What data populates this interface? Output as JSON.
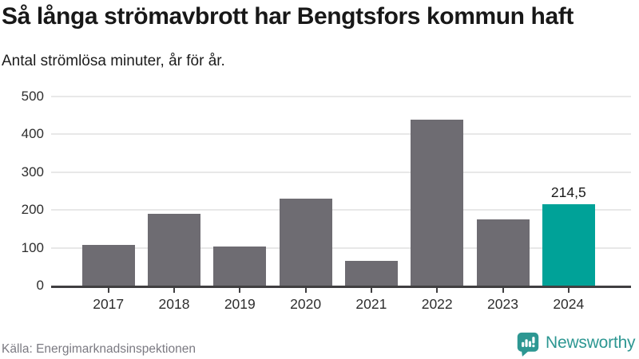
{
  "chart_data": {
    "type": "bar",
    "title": "Så långa strömavbrott har Bengtsfors kommun haft",
    "subtitle": "Antal strömlösa minuter, år för år.",
    "categories": [
      "2017",
      "2018",
      "2019",
      "2020",
      "2021",
      "2022",
      "2023",
      "2024"
    ],
    "values": [
      107,
      190,
      104,
      230,
      66,
      438,
      176,
      214.5
    ],
    "value_labels": [
      "",
      "",
      "",
      "",
      "",
      "",
      "",
      "214,5"
    ],
    "highlight_index": 7,
    "xlabel": "",
    "ylabel": "Antal strömlösa minuter",
    "ylim": [
      0,
      500
    ],
    "yticks": [
      0,
      100,
      200,
      300,
      400,
      500
    ],
    "grid": true,
    "legend": false
  },
  "footer": {
    "source": "Källa: Energimarknadsinspektionen",
    "brand": "Newsworthy"
  },
  "colors": {
    "bar": "#6e6c72",
    "highlight": "#00a298",
    "grid": "#e8e8e8",
    "axis": "#403f41",
    "brand": "#2d9792",
    "title": "#181818",
    "label": "#2e2e2e",
    "source": "#7b7a82"
  }
}
